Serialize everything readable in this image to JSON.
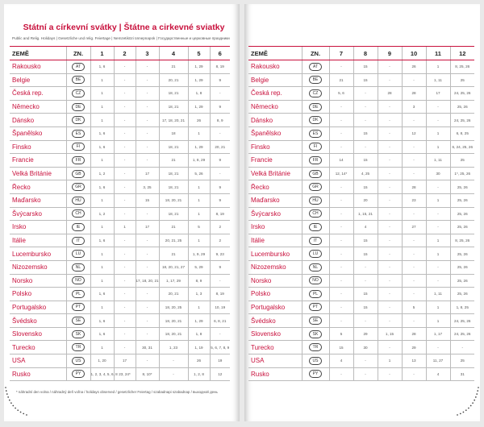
{
  "title": "Státní a církevní svátky | Štátne a cirkevné sviatky",
  "subtitle": "Public and Relig. Holidays | Gesetzliche und relig. Feiertage | Nemzetiközi ünnepnapok | Государственные и церковные праздники",
  "footnote": "* náhradní den volna / náhradný deň voľna / holidays observed / gesetzlicher Feiertag / szabadnapi szabadnap / выходной день",
  "left_table": {
    "columns": [
      "ZEMĚ",
      "ZN.",
      "1",
      "2",
      "3",
      "4",
      "5",
      "6"
    ],
    "rows": [
      [
        "Rakousko",
        "AT",
        "1, 6",
        "-",
        "-",
        "21",
        "1, 29",
        "8, 19"
      ],
      [
        "Belgie",
        "BE",
        "1",
        "-",
        "-",
        "20, 21",
        "1, 29",
        "9"
      ],
      [
        "Česká rep.",
        "CZ",
        "1",
        "-",
        "-",
        "18, 21",
        "1, 8",
        "-"
      ],
      [
        "Německo",
        "DE",
        "1",
        "-",
        "-",
        "18, 21",
        "1, 29",
        "9"
      ],
      [
        "Dánsko",
        "DK",
        "1",
        "-",
        "-",
        "17, 18, 20, 21",
        "26",
        "8, 9"
      ],
      [
        "Španělsko",
        "ES",
        "1, 6",
        "-",
        "-",
        "18",
        "1",
        "-"
      ],
      [
        "Finsko",
        "FI",
        "1, 6",
        "-",
        "-",
        "18, 21",
        "1, 29",
        "20, 21"
      ],
      [
        "Francie",
        "FR",
        "1",
        "-",
        "-",
        "21",
        "1, 8, 29",
        "9"
      ],
      [
        "Velká Británie",
        "GB",
        "1, 2",
        "-",
        "17",
        "18, 21",
        "5, 26",
        "-"
      ],
      [
        "Řecko",
        "GR",
        "1, 6",
        "-",
        "3, 25",
        "18, 21",
        "1",
        "9"
      ],
      [
        "Maďarsko",
        "HU",
        "1",
        "-",
        "15",
        "18, 20, 21",
        "1",
        "9"
      ],
      [
        "Švýcarsko",
        "CH",
        "1, 2",
        "-",
        "-",
        "18, 21",
        "1",
        "8, 19"
      ],
      [
        "Irsko",
        "IE",
        "1",
        "1",
        "17",
        "21",
        "5",
        "2"
      ],
      [
        "Itálie",
        "IT",
        "1, 6",
        "-",
        "-",
        "20, 21, 25",
        "1",
        "2"
      ],
      [
        "Lucembursko",
        "LU",
        "1",
        "-",
        "-",
        "21",
        "1, 9, 29",
        "9, 23"
      ],
      [
        "Nizozemsko",
        "NL",
        "1",
        "-",
        "-",
        "18, 20, 21, 27",
        "5, 29",
        "9"
      ],
      [
        "Norsko",
        "NO",
        "1",
        "-",
        "17, 18, 20, 21",
        "1, 17, 29",
        "8, 9",
        "-"
      ],
      [
        "Polsko",
        "PL",
        "1, 6",
        "-",
        "-",
        "20, 21",
        "1, 3",
        "8, 19"
      ],
      [
        "Portugalsko",
        "PT",
        "1",
        "-",
        "-",
        "18, 20, 25",
        "1",
        "10, 19"
      ],
      [
        "Švédsko",
        "SE",
        "1, 6",
        "-",
        "-",
        "18, 20, 21",
        "1, 29",
        "6, 8, 21"
      ],
      [
        "Slovensko",
        "SK",
        "1, 6",
        "-",
        "-",
        "18, 20, 21",
        "1, 8",
        "-"
      ],
      [
        "Turecko",
        "TR",
        "1",
        "-",
        "30, 31",
        "1, 23",
        "1, 19",
        "5, 6, 7, 8, 9"
      ],
      [
        "USA",
        "US",
        "1, 20",
        "17",
        "-",
        "-",
        "26",
        "19"
      ],
      [
        "Rusko",
        "PY",
        "1, 2, 3, 4, 5, 6, 8",
        "23, 24*",
        "8, 10*",
        "-",
        "1, 2, 8",
        "12"
      ]
    ]
  },
  "right_table": {
    "columns": [
      "ZEMĚ",
      "ZN.",
      "7",
      "8",
      "9",
      "10",
      "11",
      "12"
    ],
    "rows": [
      [
        "Rakousko",
        "AT",
        "-",
        "15",
        "-",
        "26",
        "1",
        "8, 25, 26"
      ],
      [
        "Belgie",
        "BE",
        "21",
        "15",
        "-",
        "-",
        "1, 11",
        "25"
      ],
      [
        "Česká rep.",
        "CZ",
        "5, 6",
        "-",
        "28",
        "28",
        "17",
        "24, 25, 26"
      ],
      [
        "Německo",
        "DE",
        "-",
        "-",
        "-",
        "3",
        "-",
        "25, 26"
      ],
      [
        "Dánsko",
        "DK",
        "-",
        "-",
        "-",
        "-",
        "-",
        "24, 25, 26"
      ],
      [
        "Španělsko",
        "ES",
        "-",
        "15",
        "-",
        "12",
        "1",
        "6, 8, 25"
      ],
      [
        "Finsko",
        "FI",
        "-",
        "-",
        "-",
        "-",
        "1",
        "6, 24, 25, 26"
      ],
      [
        "Francie",
        "FR",
        "14",
        "15",
        "-",
        "-",
        "1, 11",
        "25"
      ],
      [
        "Velká Británie",
        "GB",
        "12, 14*",
        "4, 25",
        "-",
        "-",
        "30",
        "1*, 25, 26"
      ],
      [
        "Řecko",
        "GR",
        "-",
        "15",
        "-",
        "28",
        "-",
        "25, 26"
      ],
      [
        "Maďarsko",
        "HU",
        "-",
        "20",
        "-",
        "23",
        "1",
        "25, 26"
      ],
      [
        "Švýcarsko",
        "CH",
        "-",
        "1, 15, 21",
        "-",
        "-",
        "-",
        "25, 26"
      ],
      [
        "Irsko",
        "IE",
        "-",
        "4",
        "-",
        "27",
        "-",
        "25, 26"
      ],
      [
        "Itálie",
        "IT",
        "-",
        "15",
        "-",
        "-",
        "1",
        "8, 25, 26"
      ],
      [
        "Lucembursko",
        "LU",
        "-",
        "15",
        "-",
        "-",
        "1",
        "25, 26"
      ],
      [
        "Nizozemsko",
        "NL",
        "-",
        "-",
        "-",
        "-",
        "-",
        "25, 26"
      ],
      [
        "Norsko",
        "NO",
        "-",
        "-",
        "-",
        "-",
        "-",
        "25, 26"
      ],
      [
        "Polsko",
        "PL",
        "-",
        "15",
        "-",
        "-",
        "1, 11",
        "25, 26"
      ],
      [
        "Portugalsko",
        "PT",
        "-",
        "15",
        "-",
        "5",
        "1",
        "1, 8, 25"
      ],
      [
        "Švédsko",
        "SE",
        "-",
        "-",
        "-",
        "-",
        "1",
        "24, 25, 26"
      ],
      [
        "Slovensko",
        "SK",
        "5",
        "29",
        "1, 15",
        "28",
        "1, 17",
        "24, 25, 26"
      ],
      [
        "Turecko",
        "TR",
        "15",
        "30",
        "-",
        "29",
        "-",
        "-"
      ],
      [
        "USA",
        "US",
        "4",
        "-",
        "1",
        "13",
        "11, 27",
        "25"
      ],
      [
        "Rusko",
        "PY",
        "-",
        "-",
        "-",
        "-",
        "4",
        "31"
      ]
    ]
  }
}
